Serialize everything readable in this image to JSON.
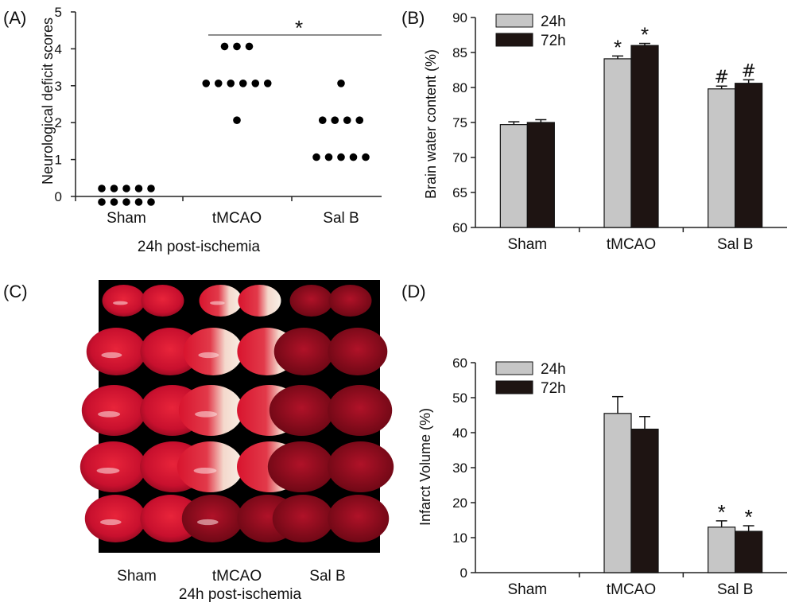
{
  "colors": {
    "series_24h": "#c6c6c6",
    "series_72h": "#1e1412",
    "axis": "#222222",
    "brain_red": "#c8102e"
  },
  "chart_data": [
    {
      "panel": "(A)",
      "type": "scatter",
      "ylabel": "Neurological deficit scores",
      "xlabel": "24h post-ischemia",
      "categories": [
        "Sham",
        "tMCAO",
        "Sal B"
      ],
      "ylim": [
        0,
        5
      ],
      "yticks": [
        0,
        1,
        2,
        3,
        4,
        5
      ],
      "points": {
        "Sham": [
          0,
          0,
          0,
          0,
          0,
          0,
          0,
          0,
          0,
          0
        ],
        "tMCAO": [
          4,
          4,
          4,
          3,
          3,
          3,
          3,
          3,
          3,
          2
        ],
        "Sal B": [
          3,
          2,
          2,
          2,
          2,
          1,
          1,
          1,
          1,
          1
        ]
      },
      "annotation": "*"
    },
    {
      "panel": "(B)",
      "type": "bar",
      "ylabel": "Brain water content (%)",
      "categories": [
        "Sham",
        "tMCAO",
        "Sal B"
      ],
      "ylim": [
        60,
        90
      ],
      "yticks": [
        60,
        65,
        70,
        75,
        80,
        85,
        90
      ],
      "legend_position": "top-left",
      "series": [
        {
          "name": "24h",
          "values": [
            74.7,
            84.1,
            79.8
          ],
          "errors": [
            0.4,
            0.4,
            0.4
          ],
          "marks": [
            "",
            "*",
            "#"
          ]
        },
        {
          "name": "72h",
          "values": [
            75.0,
            86.0,
            80.6
          ],
          "errors": [
            0.4,
            0.3,
            0.5
          ],
          "marks": [
            "",
            "*",
            "#"
          ]
        }
      ]
    },
    {
      "panel": "(D)",
      "type": "bar",
      "ylabel": "Infarct Volume (%)",
      "categories": [
        "Sham",
        "tMCAO",
        "Sal B"
      ],
      "ylim": [
        0,
        60
      ],
      "yticks": [
        0,
        10,
        20,
        30,
        40,
        50,
        60
      ],
      "legend_position": "top-left",
      "series": [
        {
          "name": "24h",
          "values": [
            0,
            45.5,
            13.0
          ],
          "errors": [
            0,
            4.8,
            1.8
          ],
          "marks": [
            "",
            "",
            "*"
          ]
        },
        {
          "name": "72h",
          "values": [
            0,
            41.0,
            11.8
          ],
          "errors": [
            0,
            3.6,
            1.6
          ],
          "marks": [
            "",
            "",
            "*"
          ]
        }
      ]
    }
  ],
  "panel_c": {
    "panel": "(C)",
    "columns": [
      "Sham",
      "tMCAO",
      "Sal B"
    ],
    "xlabel": "24h post-ischemia",
    "rows": 5
  }
}
